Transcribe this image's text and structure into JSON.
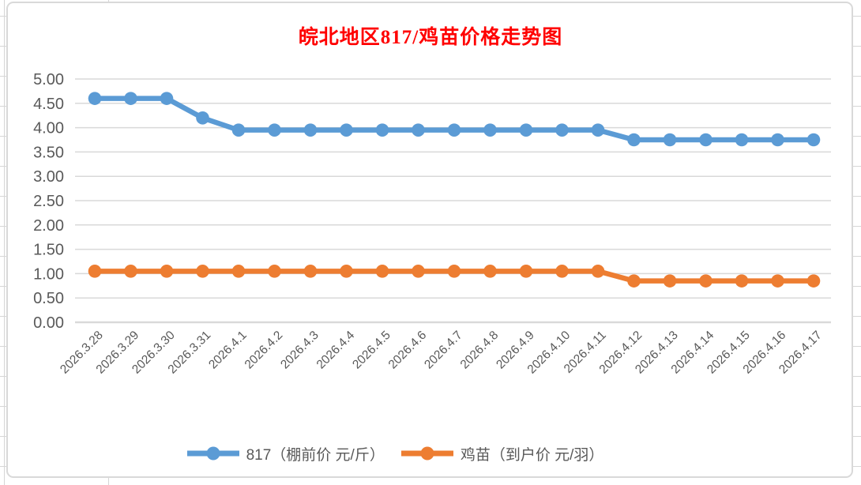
{
  "chart_data": {
    "type": "line",
    "title": "皖北地区817/鸡苗价格走势图",
    "title_color": "#FF0000",
    "categories": [
      "2026.3.28",
      "2026.3.29",
      "2026.3.30",
      "2026.3.31",
      "2026.4.1",
      "2026.4.2",
      "2026.4.3",
      "2026.4.4",
      "2026.4.5",
      "2026.4.6",
      "2026.4.7",
      "2026.4.8",
      "2026.4.9",
      "2026.4.10",
      "2026.4.11",
      "2026.4.12",
      "2026.4.13",
      "2026.4.14",
      "2026.4.15",
      "2026.4.16",
      "2026.4.17"
    ],
    "series": [
      {
        "name": "817（棚前价 元/斤）",
        "color": "#5B9BD5",
        "values": [
          4.6,
          4.6,
          4.6,
          4.2,
          3.95,
          3.95,
          3.95,
          3.95,
          3.95,
          3.95,
          3.95,
          3.95,
          3.95,
          3.95,
          3.95,
          3.75,
          3.75,
          3.75,
          3.75,
          3.75,
          3.75
        ]
      },
      {
        "name": "鸡苗（到户价 元/羽）",
        "color": "#ED7D31",
        "values": [
          1.05,
          1.05,
          1.05,
          1.05,
          1.05,
          1.05,
          1.05,
          1.05,
          1.05,
          1.05,
          1.05,
          1.05,
          1.05,
          1.05,
          1.05,
          0.85,
          0.85,
          0.85,
          0.85,
          0.85,
          0.85
        ]
      }
    ],
    "y_ticks": [
      "5.00",
      "4.50",
      "4.00",
      "3.50",
      "3.00",
      "2.50",
      "2.00",
      "1.50",
      "1.00",
      "0.50",
      "0.00"
    ],
    "ylim": [
      0,
      5
    ],
    "xlabel": "",
    "ylabel": "",
    "grid": "horizontal",
    "legend_position": "bottom",
    "axis_text_color": "#595959",
    "gridline_color": "#D9D9D9"
  }
}
